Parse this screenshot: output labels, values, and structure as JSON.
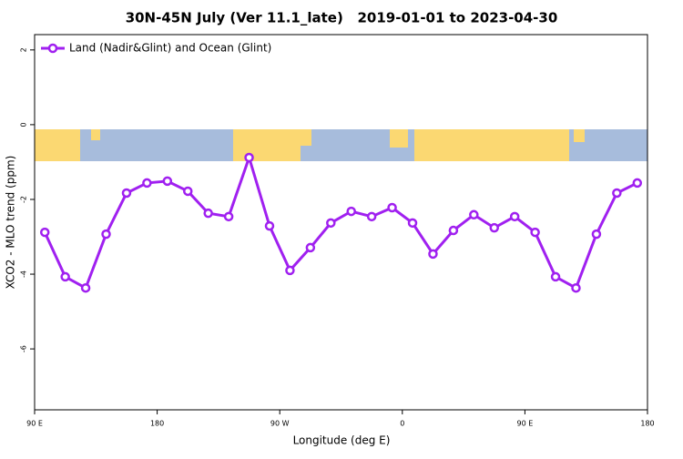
{
  "chart_data": {
    "type": "line",
    "title": "30N-45N July (Ver 11.1_late)   2019-01-01 to 2023-04-30",
    "x_label": "Longitude (deg E)",
    "y_label": "XCO2 - MLO trend (ppm)",
    "xlim": [
      90,
      540
    ],
    "xticks": [
      {
        "value": 90,
        "label": "90 E"
      },
      180,
      {
        "value": 270,
        "label": "90 W"
      },
      {
        "value": 360,
        "label": "0"
      },
      {
        "value": 450,
        "label": "90 E"
      },
      {
        "value": 540,
        "label": "180"
      }
    ],
    "ylim": [
      -7.63,
      2.41
    ],
    "yticks": [
      2,
      0,
      -2,
      -4,
      -6
    ],
    "legend": "top-left",
    "x": [
      97.5,
      112.5,
      127.5,
      142.5,
      157.5,
      172.5,
      187.5,
      202.5,
      217.5,
      232.5,
      247.5,
      262.5,
      277.5,
      292.5,
      307.5,
      322.5,
      337.5,
      352.5,
      367.5,
      382.5,
      397.5,
      412.5,
      427.5,
      442.5,
      457.5,
      472.5,
      487.5,
      502.5,
      517.5,
      532.5
    ],
    "series": [
      {
        "name": "Land (Nadir&Glint) and Ocean (Glint)",
        "color": "#a020f0",
        "values": [
          -2.88,
          -4.07,
          -4.37,
          -2.93,
          -1.83,
          -1.56,
          -1.51,
          -1.78,
          -2.37,
          -2.46,
          -0.88,
          -2.71,
          -3.9,
          -3.29,
          -2.63,
          -2.32,
          -2.46,
          -2.22,
          -2.63,
          -3.46,
          -2.83,
          -2.41,
          -2.76,
          -2.46,
          -2.88,
          -4.07,
          -4.37,
          -2.93,
          -1.83,
          -1.56
        ]
      }
    ]
  }
}
